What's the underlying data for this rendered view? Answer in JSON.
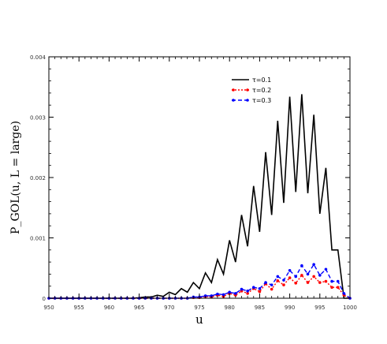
{
  "chart_data": {
    "type": "line",
    "xlabel": "u",
    "ylabel": "P_GOL(u, L = large)",
    "xlim": [
      950,
      1000
    ],
    "ylim": [
      0,
      0.004
    ],
    "xticks": [
      950,
      955,
      960,
      965,
      970,
      975,
      980,
      985,
      990,
      995,
      1000
    ],
    "xtick_labels": [
      "950",
      "955",
      "960",
      "965",
      "970",
      "975",
      "980",
      "985",
      "990",
      "995",
      "1000"
    ],
    "yticks": [
      0,
      0.001,
      0.002,
      0.003,
      0.004
    ],
    "ytick_labels": [
      "0",
      "0.001",
      "0.002",
      "0.003",
      "0.004"
    ],
    "legend_position": "top-right",
    "series": [
      {
        "name": "τ=0.1",
        "color": "#000000",
        "style": "solid",
        "marker": "none",
        "x": [
          950,
          951,
          952,
          953,
          954,
          955,
          956,
          957,
          958,
          959,
          960,
          961,
          962,
          963,
          964,
          965,
          966,
          967,
          968,
          969,
          970,
          971,
          972,
          973,
          974,
          975,
          976,
          977,
          978,
          979,
          980,
          981,
          982,
          983,
          984,
          985,
          986,
          987,
          988,
          989,
          990,
          991,
          992,
          993,
          994,
          995,
          996,
          997,
          998,
          999,
          1000
        ],
        "y": [
          0,
          0,
          0,
          0,
          0,
          0,
          0,
          0,
          0,
          0,
          0,
          0,
          0,
          0,
          0,
          1e-05,
          2e-05,
          2e-05,
          5e-05,
          3e-05,
          0.0001,
          6e-05,
          0.00016,
          0.0001,
          0.00026,
          0.00016,
          0.00042,
          0.00026,
          0.00064,
          0.0004,
          0.00096,
          0.0006,
          0.00138,
          0.00086,
          0.00186,
          0.0011,
          0.00242,
          0.00138,
          0.00294,
          0.00158,
          0.00334,
          0.00176,
          0.00338,
          0.00174,
          0.00304,
          0.0014,
          0.00216,
          0.0008,
          0.0008,
          0,
          0
        ]
      },
      {
        "name": "τ=0.2",
        "color": "#ff0000",
        "style": "dotted",
        "marker": "circle",
        "x": [
          950,
          951,
          952,
          953,
          954,
          955,
          956,
          957,
          958,
          959,
          960,
          961,
          962,
          963,
          964,
          965,
          966,
          967,
          968,
          969,
          970,
          971,
          972,
          973,
          974,
          975,
          976,
          977,
          978,
          979,
          980,
          981,
          982,
          983,
          984,
          985,
          986,
          987,
          988,
          989,
          990,
          991,
          992,
          993,
          994,
          995,
          996,
          997,
          998,
          999,
          1000
        ],
        "y": [
          0,
          0,
          0,
          0,
          0,
          0,
          0,
          0,
          0,
          0,
          0,
          0,
          0,
          0,
          0,
          0,
          0,
          0,
          0,
          0,
          0,
          0,
          0,
          0,
          1e-05,
          1e-05,
          3e-05,
          2e-05,
          5e-05,
          3e-05,
          8e-05,
          5e-05,
          0.00012,
          8e-05,
          0.00016,
          0.00011,
          0.00024,
          0.00015,
          0.00029,
          0.00022,
          0.00034,
          0.00025,
          0.00038,
          0.00026,
          0.00036,
          0.00026,
          0.00028,
          0.00018,
          0.00018,
          5e-05,
          0
        ]
      },
      {
        "name": "τ=0.3",
        "color": "#0000ff",
        "style": "dashed",
        "marker": "circle",
        "x": [
          950,
          951,
          952,
          953,
          954,
          955,
          956,
          957,
          958,
          959,
          960,
          961,
          962,
          963,
          964,
          965,
          966,
          967,
          968,
          969,
          970,
          971,
          972,
          973,
          974,
          975,
          976,
          977,
          978,
          979,
          980,
          981,
          982,
          983,
          984,
          985,
          986,
          987,
          988,
          989,
          990,
          991,
          992,
          993,
          994,
          995,
          996,
          997,
          998,
          999,
          1000
        ],
        "y": [
          0,
          0,
          0,
          0,
          0,
          0,
          0,
          0,
          0,
          0,
          0,
          0,
          0,
          0,
          0,
          0,
          0,
          0,
          0,
          0,
          0,
          0,
          0,
          0,
          2e-05,
          2e-05,
          4e-05,
          4e-05,
          7e-05,
          6e-05,
          0.0001,
          8e-05,
          0.00015,
          0.00012,
          0.00018,
          0.00016,
          0.00026,
          0.00022,
          0.00036,
          0.0003,
          0.00046,
          0.00036,
          0.00054,
          0.0004,
          0.00056,
          0.00038,
          0.00048,
          0.00028,
          0.00028,
          8e-05,
          0
        ]
      }
    ]
  }
}
